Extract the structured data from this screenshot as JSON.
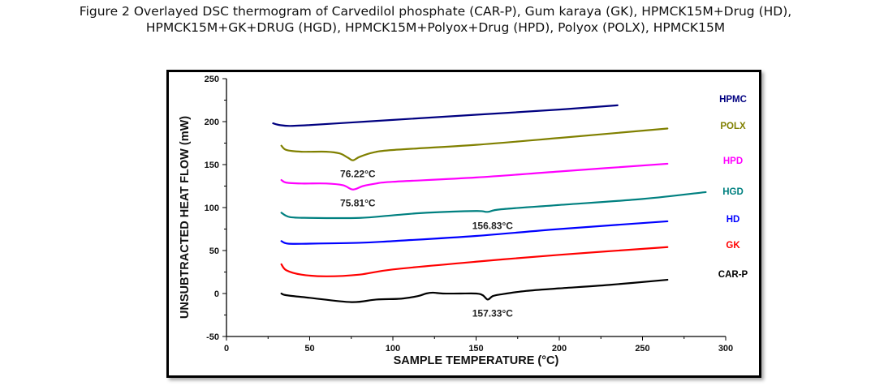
{
  "caption": {
    "line1": "Figure  2 Overlayed  DSC thermogram of   Carvedilol phosphate (CAR-P), Gum karaya (GK), HPMCK15M+Drug (HD),",
    "line2": "HPMCK15M+GK+DRUG (HGD), HPMCK15M+Polyox+Drug (HPD), Polyox (POLX), HPMCK15M"
  },
  "chart_data": {
    "type": "line",
    "title": "Overlayed DSC thermogram",
    "xlabel": "SAMPLE TEMPERATURE (°C)",
    "ylabel": "UNSUBTRACTED HEAT FLOW (mW)",
    "xlim": [
      0,
      300
    ],
    "ylim": [
      -50,
      250
    ],
    "xticks": [
      0,
      50,
      100,
      150,
      200,
      250,
      300
    ],
    "yticks": [
      -50,
      0,
      50,
      100,
      150,
      200,
      250
    ],
    "grid": false,
    "legend_placement": "right",
    "series": [
      {
        "name": "HPMC",
        "color": "#000080",
        "x": [
          28,
          32,
          38,
          50,
          75,
          100,
          150,
          200,
          235
        ],
        "y": [
          198,
          196,
          195,
          196,
          199,
          202,
          208,
          214,
          219
        ]
      },
      {
        "name": "POLX",
        "color": "#808000",
        "x": [
          33,
          36,
          45,
          60,
          68,
          73,
          76,
          80,
          88,
          100,
          150,
          200,
          265
        ],
        "y": [
          172,
          167,
          165,
          165,
          163,
          158,
          155,
          159,
          164,
          167,
          173,
          181,
          192
        ]
      },
      {
        "name": "HPD",
        "color": "#ff00ff",
        "x": [
          33,
          36,
          45,
          60,
          70,
          76,
          82,
          90,
          100,
          150,
          200,
          265
        ],
        "y": [
          132,
          129,
          128,
          128,
          126,
          121,
          125,
          128,
          130,
          135,
          142,
          151
        ]
      },
      {
        "name": "HGD",
        "color": "#008080",
        "x": [
          33,
          38,
          50,
          80,
          100,
          120,
          150,
          157,
          165,
          200,
          250,
          288
        ],
        "y": [
          94,
          89,
          88,
          88,
          91,
          94,
          96,
          95,
          98,
          103,
          110,
          118
        ]
      },
      {
        "name": "HD",
        "color": "#0000ff",
        "x": [
          33,
          37,
          50,
          80,
          100,
          150,
          200,
          265
        ],
        "y": [
          61,
          58,
          58,
          59,
          61,
          67,
          75,
          84
        ]
      },
      {
        "name": "GK",
        "color": "#ff0000",
        "x": [
          33,
          36,
          45,
          60,
          80,
          100,
          150,
          200,
          265
        ],
        "y": [
          34,
          27,
          22,
          20,
          22,
          28,
          37,
          45,
          54
        ]
      },
      {
        "name": "CAR-P",
        "color": "#000000",
        "x": [
          33,
          36,
          50,
          75,
          90,
          105,
          115,
          120,
          124,
          130,
          140,
          150,
          154,
          157,
          160,
          165,
          180,
          200,
          230,
          265
        ],
        "y": [
          0,
          -2,
          -5,
          -10,
          -7,
          -6,
          -3,
          0,
          1,
          0,
          0,
          0,
          -2,
          -7,
          -3,
          -1,
          3,
          6,
          10,
          16
        ]
      }
    ],
    "annotations": [
      {
        "text": "76.22°C",
        "x": 76,
        "y": 155,
        "series": "POLX"
      },
      {
        "text": "75.81°C",
        "x": 76,
        "y": 121,
        "series": "HPD"
      },
      {
        "text": "156.83°C",
        "x": 157,
        "y": 95,
        "series": "HGD"
      },
      {
        "text": "157.33°C",
        "x": 157,
        "y": -7,
        "series": "CAR-P"
      }
    ]
  }
}
